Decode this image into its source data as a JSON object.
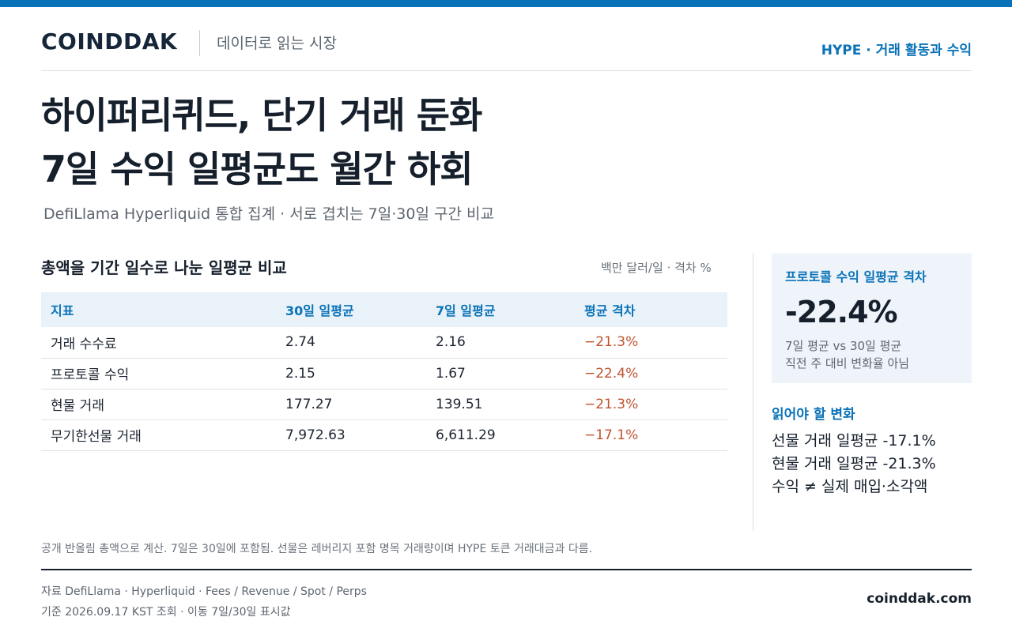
{
  "header": {
    "brand": "COINDDAK",
    "tagline": "데이터로 읽는 시장",
    "section_tag": "HYPE · 거래 활동과 수익"
  },
  "headline": {
    "line1": "하이퍼리퀴드, 단기 거래 둔화",
    "line2": "7일 수익 일평균도 월간 하회"
  },
  "subtitle": "DefiLlama Hyperliquid 통합 집계 · 서로 겹치는 7일·30일 구간 비교",
  "table": {
    "title": "총액을 기간 일수로 나눈 일평균 비교",
    "unit": "백만 달러/일 · 격차 %",
    "headers": [
      "지표",
      "30일 일평균",
      "7일 일평균",
      "평균 격차"
    ],
    "rows": [
      [
        "거래 수수료",
        "2.74",
        "2.16",
        "−21.3%"
      ],
      [
        "프로토콜 수익",
        "2.15",
        "1.67",
        "−22.4%"
      ],
      [
        "현물 거래",
        "177.27",
        "139.51",
        "−21.3%"
      ],
      [
        "무기한선물 거래",
        "7,972.63",
        "6,611.29",
        "−17.1%"
      ]
    ]
  },
  "kpi": {
    "label": "프로토콜 수익 일평균 격차",
    "value": "-22.4%",
    "note_line1": "7일 평균 vs 30일 평균",
    "note_line2": "직전 주 대비 변화율 아님"
  },
  "changes": {
    "title": "읽어야 할 변화",
    "items": [
      "선물 거래 일평균 -17.1%",
      "현물 거래 일평균 -21.3%",
      "수익 ≠ 실제 매입·소각액"
    ]
  },
  "footnote": "공개 반올림 총액으로 계산. 7일은 30일에 포함됨. 선물은 레버리지 포함 명목 거래량이며 HYPE 토큰 거래대금과 다름.",
  "source": {
    "line1": "자료  DefiLlama · Hyperliquid · Fees / Revenue / Spot / Perps",
    "line2": "기준  2026.09.17 KST 조회 · 이동 7일/30일 표시값"
  },
  "site": "coinddak.com",
  "colors": {
    "accent": "#0a72b8",
    "negative": "#c0542f",
    "kpi_bg": "#eef4fa"
  }
}
